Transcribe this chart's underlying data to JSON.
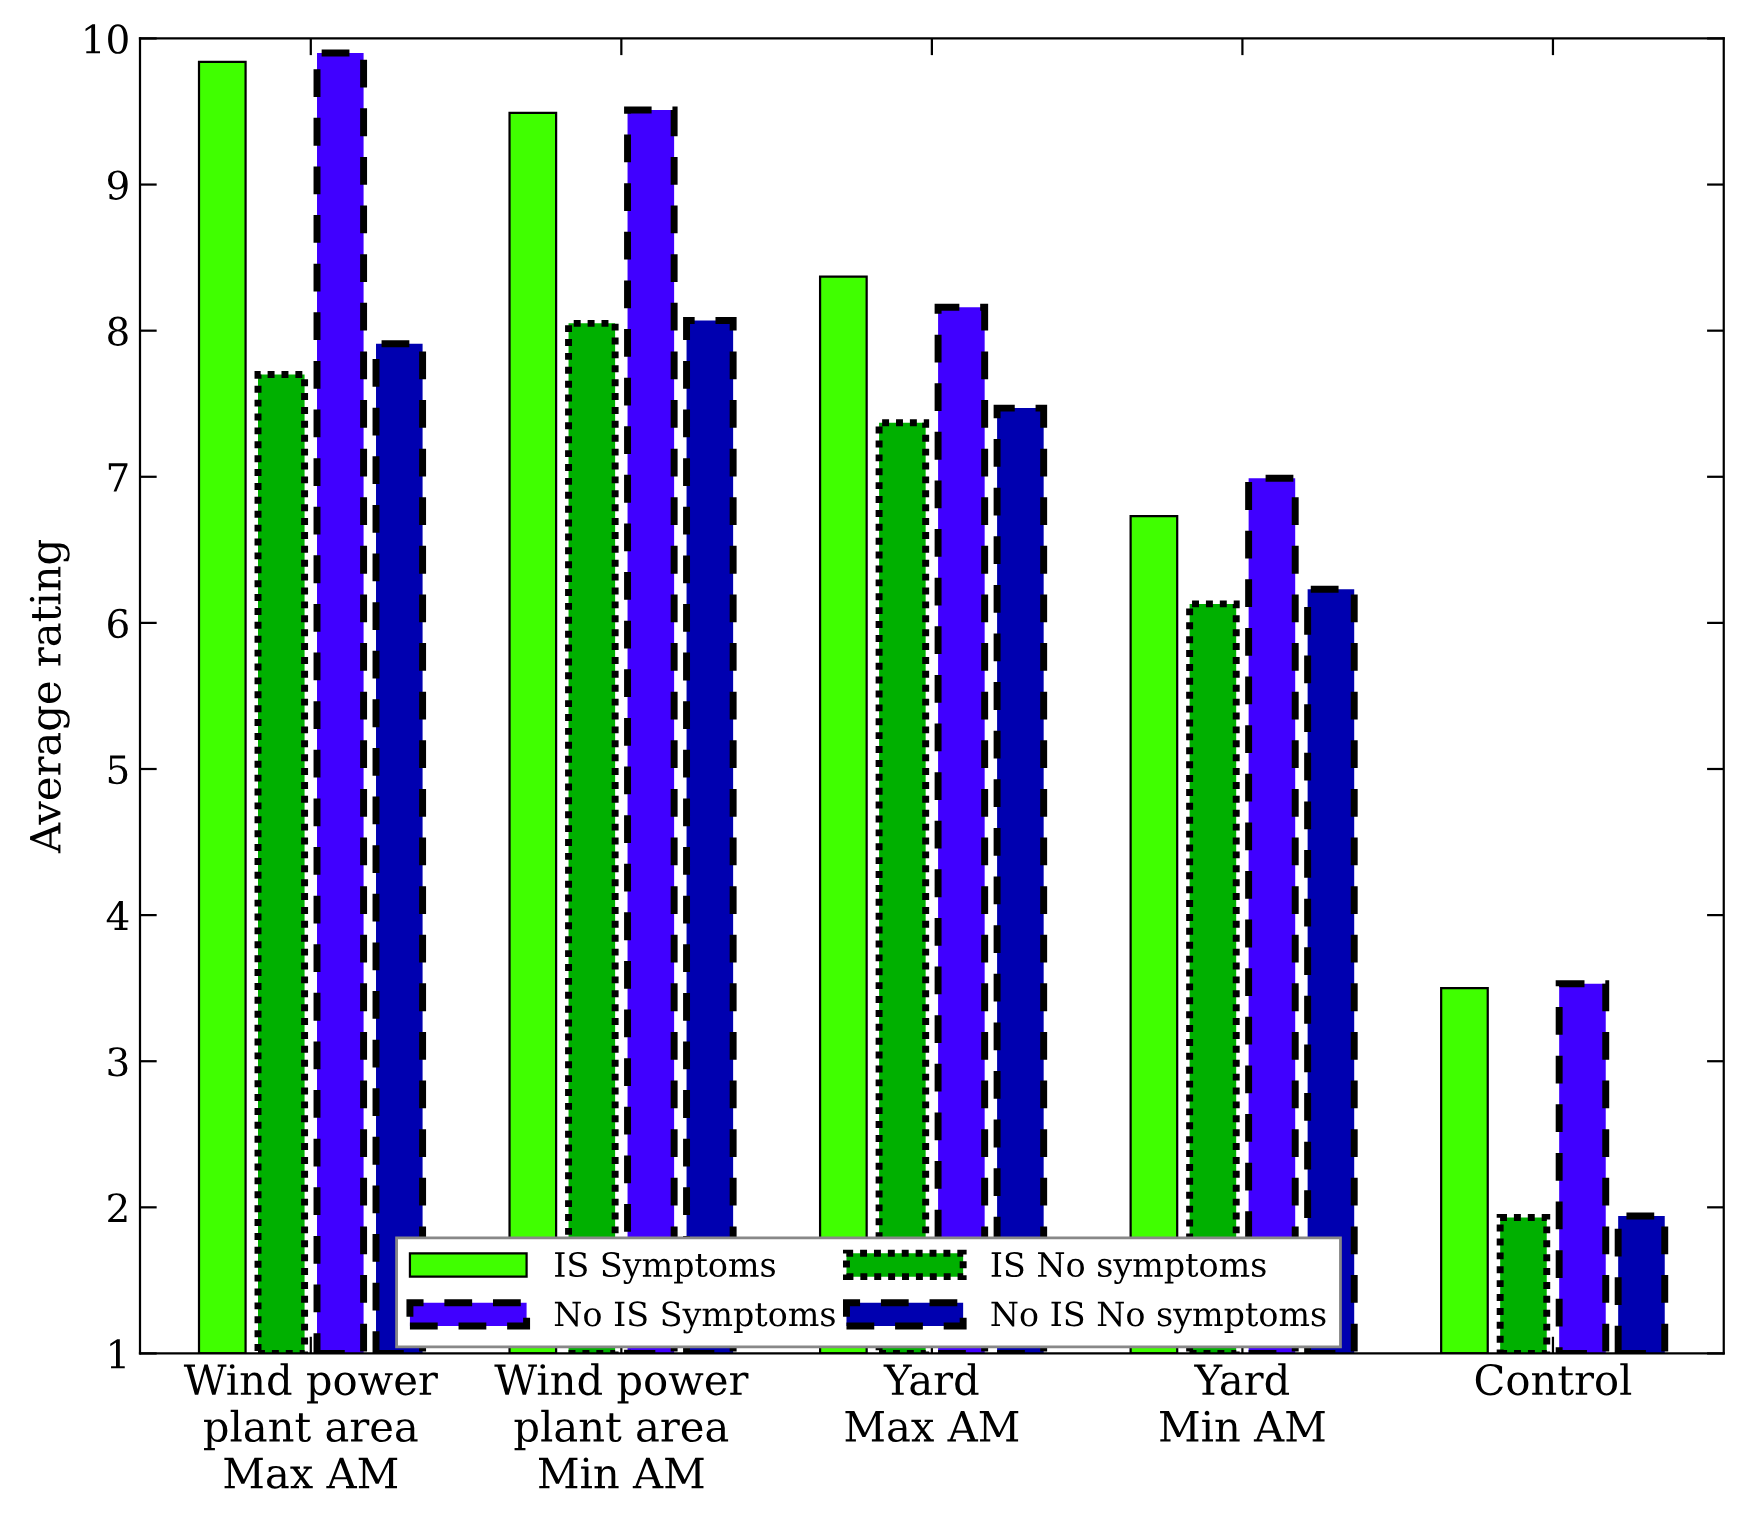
{
  "chart_data": {
    "type": "bar",
    "ylabel": "Average rating",
    "categories": [
      "Wind power\nplant area\nMax AM",
      "Wind power\nplant area\nMin AM",
      "Yard\nMax AM",
      "Yard\nMin AM",
      "Control"
    ],
    "series": [
      {
        "name": "IS Symptoms",
        "color": "#40ff00",
        "line_style": "solid",
        "values": [
          9.84,
          9.49,
          8.37,
          6.73,
          3.5
        ]
      },
      {
        "name": "IS No symptoms",
        "color": "#00b000",
        "line_style": "dotted",
        "values": [
          7.7,
          8.05,
          7.37,
          6.13,
          1.93
        ]
      },
      {
        "name": "No IS Symptoms",
        "color": "#4000ff",
        "line_style": "dashed",
        "values": [
          9.9,
          9.51,
          8.16,
          6.99,
          3.53
        ]
      },
      {
        "name": "No IS No symptoms",
        "color": "#0000b0",
        "line_style": "dashed",
        "values": [
          7.91,
          8.07,
          7.47,
          6.23,
          1.94
        ]
      }
    ],
    "ylim": [
      1,
      10
    ],
    "yticks": [
      1,
      2,
      3,
      4,
      5,
      6,
      7,
      8,
      9,
      10
    ],
    "grid": false,
    "legend": "bottom"
  }
}
